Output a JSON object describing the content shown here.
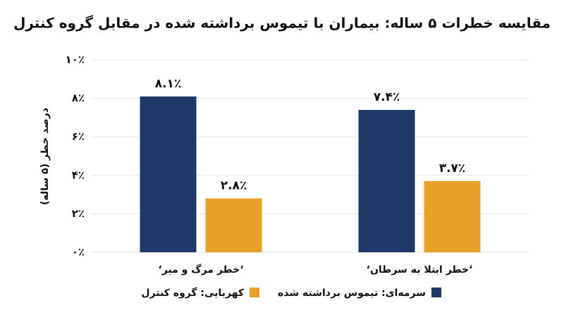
{
  "chart_data": {
    "type": "bar",
    "title": "مقایسه خطرات ۵ ساله: بیماران با تیموس برداشته شده در مقابل گروه کنترل",
    "y_label": "درصد خطر (۵ ساله)",
    "categories": [
      "‘خطر مرگ و میر‘",
      "‘خطر ابتلا به سرطان‘"
    ],
    "series": [
      {
        "name": "سرمه‌ای: تیموس برداشته شده",
        "color": "#1f3868",
        "values": [
          8.1,
          7.4
        ],
        "value_labels": [
          "۸.۱٪",
          "۷.۴٪"
        ]
      },
      {
        "name": "کهربایی: گروه کنترل",
        "color": "#e8a128",
        "values": [
          2.8,
          3.7
        ],
        "value_labels": [
          "۲.۸٪",
          "۳.۷٪"
        ]
      }
    ],
    "ylim": [
      0,
      10
    ],
    "yticks": [
      {
        "value": 0,
        "label": "۰٪"
      },
      {
        "value": 2,
        "label": "۲٪"
      },
      {
        "value": 4,
        "label": "۴٪"
      },
      {
        "value": 6,
        "label": "۶٪"
      },
      {
        "value": 8,
        "label": "۸٪"
      },
      {
        "value": 10,
        "label": "۱۰٪"
      }
    ],
    "grid": true
  }
}
